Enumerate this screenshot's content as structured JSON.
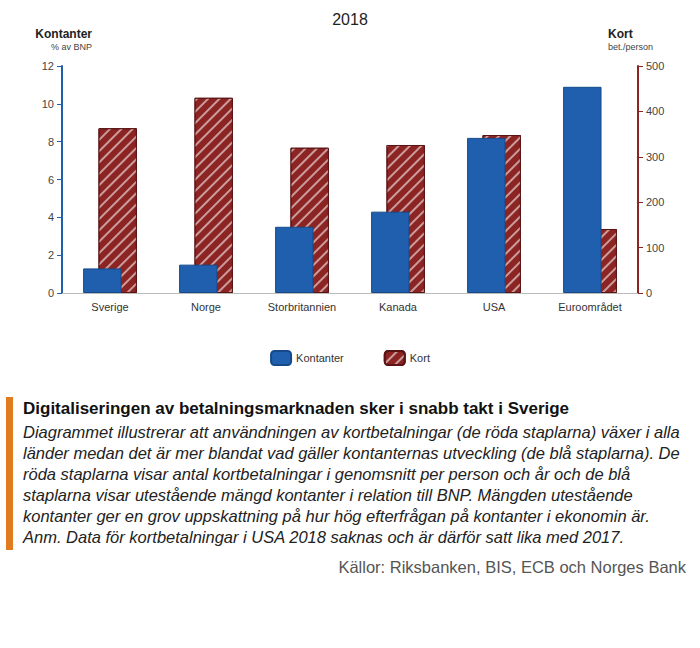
{
  "chart_data": {
    "type": "bar",
    "title": "2018",
    "categories": [
      "Sverige",
      "Norge",
      "Storbritannien",
      "Kanada",
      "USA",
      "Euroområdet"
    ],
    "series": [
      {
        "name": "Kontanter",
        "color": "#1f5fae",
        "axis": "y",
        "values": [
          1.3,
          1.5,
          3.5,
          4.3,
          8.2,
          10.9
        ]
      },
      {
        "name": "Kort",
        "color": "#8c2424",
        "axis": "y2",
        "values": [
          363,
          430,
          320,
          326,
          348,
          141
        ]
      }
    ],
    "y_label": "Kontanter",
    "y_unit": "% av BNP",
    "y2_label": "Kort",
    "y2_unit": "bet./person",
    "ylim": [
      0,
      12
    ],
    "yticks": [
      0,
      2,
      4,
      6,
      8,
      10,
      12
    ],
    "y2lim": [
      0,
      500
    ],
    "y2ticks": [
      0,
      100,
      200,
      300,
      400,
      500
    ],
    "grid": false,
    "legend": "bottom"
  },
  "caption": {
    "title": "Digitaliseringen av betalningsmarknaden sker i snabb takt i Sverige",
    "text": "Diagrammet illustrerar att användningen av kortbetalningar (de röda staplarna) växer i alla länder medan det är mer blandat vad gäller kontanternas utveckling (de blå staplarna). De röda staplarna visar antal kortbetalningar i genomsnitt per person och år och de blå staplarna visar utestående mängd kontanter i relation till BNP. Mängden utestående kontanter ger en grov uppskattning på hur hög efterfrågan på kontanter i ekonomin är. Anm. Data för kortbetalningar i USA 2018 saknas och är därför satt lika med 2017.",
    "source": "Källor: Riksbanken, BIS, ECB och Norges Bank"
  }
}
